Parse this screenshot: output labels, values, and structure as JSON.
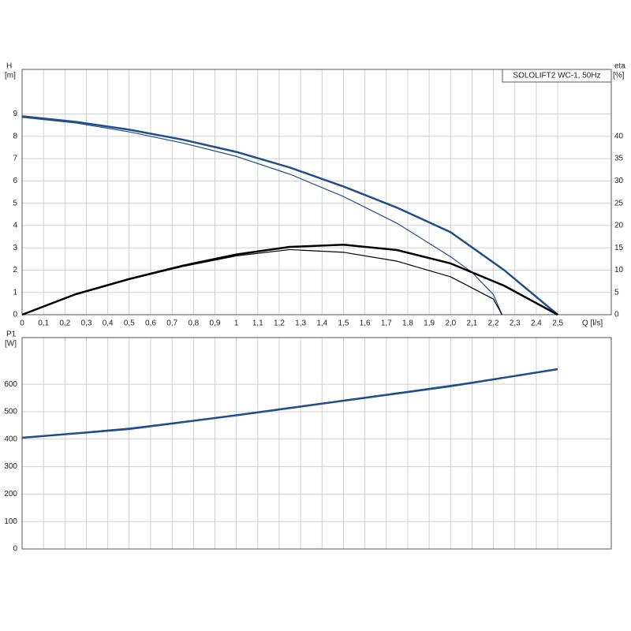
{
  "chart_data": [
    {
      "type": "line",
      "annotation": "SOLOLIFT2 WC-1, 50Hz",
      "ylabel": "H",
      "yunit": "[m]",
      "y2label": "eta",
      "y2unit": "[%]",
      "xlabel": "Q [l/s]",
      "xlim": [
        0,
        2.75
      ],
      "ylim": [
        0,
        11
      ],
      "y2lim": [
        0,
        55
      ],
      "grid": true,
      "xticks": [
        0,
        {
          "value": 0.1,
          "label": "0,1"
        },
        {
          "value": 0.2,
          "label": "0,2"
        },
        {
          "value": 0.3,
          "label": "0,3"
        },
        {
          "value": 0.4,
          "label": "0,4"
        },
        {
          "value": 0.5,
          "label": "0,5"
        },
        {
          "value": 0.6,
          "label": "0,6"
        },
        {
          "value": 0.7,
          "label": "0,7"
        },
        {
          "value": 0.8,
          "label": "0,8"
        },
        {
          "value": 0.9,
          "label": "0,9"
        },
        1,
        {
          "value": 1.1,
          "label": "1,1"
        },
        {
          "value": 1.2,
          "label": "1,2"
        },
        {
          "value": 1.3,
          "label": "1,3"
        },
        {
          "value": 1.4,
          "label": "1,4"
        },
        {
          "value": 1.5,
          "label": "1,5"
        },
        {
          "value": 1.6,
          "label": "1,6"
        },
        {
          "value": 1.7,
          "label": "1,7"
        },
        {
          "value": 1.8,
          "label": "1,8"
        },
        {
          "value": 1.9,
          "label": "1,9"
        },
        {
          "value": 2.0,
          "label": "2,0"
        },
        {
          "value": 2.1,
          "label": "2,1"
        },
        {
          "value": 2.2,
          "label": "2,2"
        },
        {
          "value": 2.3,
          "label": "2,3"
        },
        {
          "value": 2.4,
          "label": "2,4"
        },
        {
          "value": 2.5,
          "label": "2,5"
        }
      ],
      "yticks": [
        0,
        1,
        2,
        3,
        4,
        5,
        6,
        7,
        8,
        9
      ],
      "y2ticks": [
        0,
        5,
        10,
        15,
        20,
        25,
        30,
        35,
        40
      ],
      "series": [
        {
          "color": "#1f4e8c",
          "line_width": 2.5,
          "x": [
            0,
            0.25,
            0.5,
            0.75,
            1.0,
            1.25,
            1.5,
            1.75,
            2.0,
            2.25,
            2.5
          ],
          "values": [
            8.9,
            8.65,
            8.3,
            7.85,
            7.3,
            6.6,
            5.75,
            4.8,
            3.7,
            2.0,
            0
          ]
        },
        {
          "color": "#1f4e8c",
          "line_width": 1.2,
          "x": [
            0,
            0.25,
            0.5,
            0.75,
            1.0,
            1.25,
            1.5,
            1.75,
            2.0,
            2.1,
            2.2,
            2.24
          ],
          "values": [
            8.85,
            8.6,
            8.2,
            7.7,
            7.1,
            6.3,
            5.3,
            4.1,
            2.6,
            1.9,
            0.9,
            0
          ]
        },
        {
          "color": "#000000",
          "line_width": 2.5,
          "axis": "y2",
          "x": [
            0,
            0.25,
            0.5,
            0.75,
            1.0,
            1.25,
            1.5,
            1.75,
            2.0,
            2.25,
            2.5
          ],
          "values": [
            0,
            4.6,
            8,
            11,
            13.5,
            15.2,
            15.7,
            14.5,
            11.5,
            6.5,
            0
          ]
        },
        {
          "color": "#000000",
          "line_width": 1.2,
          "axis": "y2",
          "x": [
            0,
            0.25,
            0.5,
            0.75,
            1.0,
            1.25,
            1.5,
            1.75,
            2.0,
            2.2,
            2.24
          ],
          "values": [
            0,
            4.5,
            7.9,
            10.8,
            13.2,
            14.6,
            14,
            12,
            8.5,
            3.5,
            0
          ]
        }
      ]
    },
    {
      "type": "line",
      "ylabel": "P1",
      "yunit": "[W]",
      "xlim": [
        0,
        2.75
      ],
      "ylim": [
        0,
        770
      ],
      "grid": true,
      "yticks": [
        0,
        100,
        200,
        300,
        400,
        500,
        600
      ],
      "series": [
        {
          "color": "#1f4e8c",
          "line_width": 2.5,
          "x": [
            0,
            0.5,
            1.0,
            1.5,
            2.0,
            2.5
          ],
          "values": [
            405,
            437,
            487,
            540,
            593,
            655
          ]
        },
        {
          "color": "#1f4e8c",
          "line_width": 1.2,
          "x": [
            0,
            0.5,
            1.0,
            1.5,
            2.0,
            2.24
          ],
          "values": [
            405,
            440,
            487,
            541,
            596,
            622
          ]
        }
      ]
    }
  ]
}
